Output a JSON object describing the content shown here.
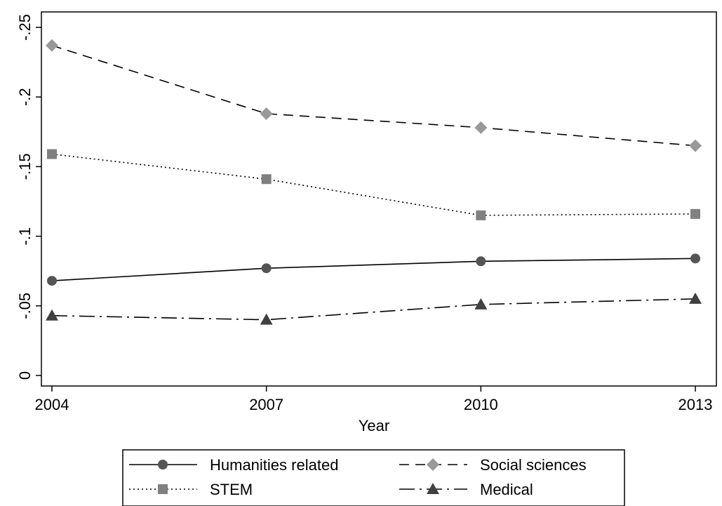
{
  "chart_data": {
    "type": "line",
    "x": [
      2004,
      2007,
      2010,
      2013
    ],
    "x_tick_labels": [
      "2004",
      "2007",
      "2010",
      "2013"
    ],
    "y_tick_labels": [
      "0",
      "-.05",
      "-.1",
      "-.15",
      "-.2",
      "-.25"
    ],
    "y_ticks": [
      0,
      -0.05,
      -0.1,
      -0.15,
      -0.2,
      -0.25
    ],
    "xlabel": "Year",
    "ylabel": "",
    "title": "",
    "ylim": [
      0,
      -0.25
    ],
    "grid": false,
    "legend_position": "bottom",
    "series": [
      {
        "name": "Humanities related",
        "values": [
          -0.068,
          -0.077,
          -0.082,
          -0.084
        ],
        "color": "#555555",
        "marker": "circle",
        "dash": "solid"
      },
      {
        "name": "Social sciences",
        "values": [
          -0.237,
          -0.188,
          -0.178,
          -0.165
        ],
        "color": "#999999",
        "marker": "diamond",
        "dash": "dashed"
      },
      {
        "name": " STEM",
        "values": [
          -0.159,
          -0.141,
          -0.115,
          -0.116
        ],
        "color": "#808080",
        "marker": "square",
        "dash": "dotted"
      },
      {
        "name": "Medical",
        "values": [
          -0.043,
          -0.04,
          -0.051,
          -0.055
        ],
        "color": "#404040",
        "marker": "triangle",
        "dash": "dashdot"
      }
    ]
  }
}
